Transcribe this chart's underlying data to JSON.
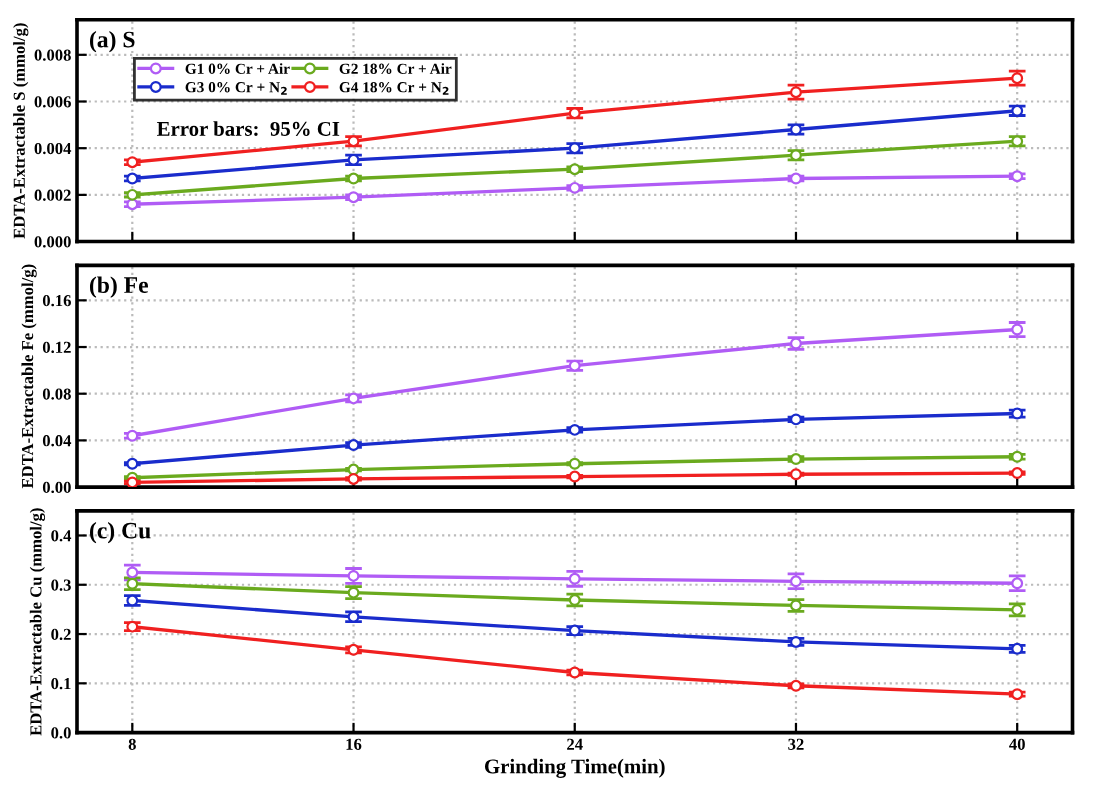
{
  "chart_data": [
    {
      "type": "line",
      "title": "(a) S",
      "ylabel": "EDTA-Extractable S (mmol/g)",
      "x": [
        8,
        16,
        24,
        32,
        40
      ],
      "xlim": [
        6,
        42
      ],
      "xticks": [
        8,
        16,
        24,
        32,
        40
      ],
      "ylim": [
        0,
        0.0095
      ],
      "yticks": [
        {
          "value": 0,
          "label": "0.000"
        },
        {
          "value": 0.002,
          "label": "0.002"
        },
        {
          "value": 0.004,
          "label": "0.004"
        },
        {
          "value": 0.006,
          "label": "0.006"
        },
        {
          "value": 0.008,
          "label": "0.008"
        }
      ],
      "grid": true,
      "legend": "top left",
      "marker": "circle",
      "tick_labels": "y",
      "annotations": [
        "Error bars:  95% CI"
      ],
      "series": [
        {
          "name": "G1 0% Cr + Air",
          "color": "#b05cf5",
          "values": [
            0.0016,
            0.0019,
            0.0023,
            0.0027,
            0.0028
          ],
          "errors": [
            0.0001,
            0.0001,
            0.0001,
            0.0001,
            0.0001
          ]
        },
        {
          "name": "G2 18% Cr + Air",
          "color": "#6aaa1e",
          "values": [
            0.002,
            0.0027,
            0.0031,
            0.0037,
            0.0043
          ],
          "errors": [
            0.0001,
            0.0001,
            0.0001,
            0.0002,
            0.0002
          ]
        },
        {
          "name": "G3 0% Cr + N$_{2}$",
          "color": "#1a2ccc",
          "values": [
            0.0027,
            0.0035,
            0.004,
            0.0048,
            0.0056
          ],
          "errors": [
            0.0001,
            0.0002,
            0.0002,
            0.0002,
            0.0002
          ]
        },
        {
          "name": "G4 18% Cr + N$_{2}$",
          "color": "#f02020",
          "values": [
            0.0034,
            0.0043,
            0.0055,
            0.0064,
            0.007
          ],
          "errors": [
            0.0001,
            0.0002,
            0.0002,
            0.0003,
            0.0003
          ]
        }
      ]
    },
    {
      "type": "line",
      "title": "(b) Fe",
      "ylabel": "EDTA-Extractable Fe (mmol/g)",
      "x": [
        8,
        16,
        24,
        32,
        40
      ],
      "xlim": [
        6,
        42
      ],
      "xticks": [
        8,
        16,
        24,
        32,
        40
      ],
      "ylim": [
        0,
        0.19
      ],
      "yticks": [
        {
          "value": 0,
          "label": "0.00"
        },
        {
          "value": 0.04,
          "label": "0.04"
        },
        {
          "value": 0.08,
          "label": "0.08"
        },
        {
          "value": 0.12,
          "label": "0.12"
        },
        {
          "value": 0.16,
          "label": "0.16"
        }
      ],
      "grid": true,
      "marker": "circle",
      "tick_labels": "y",
      "series": [
        {
          "color": "#b05cf5",
          "values": [
            0.044,
            0.076,
            0.104,
            0.123,
            0.135
          ],
          "errors": [
            0.002,
            0.003,
            0.004,
            0.005,
            0.006
          ]
        },
        {
          "color": "#6aaa1e",
          "values": [
            0.008,
            0.015,
            0.02,
            0.024,
            0.026
          ],
          "errors": [
            0.001,
            0.001,
            0.001,
            0.002,
            0.002
          ]
        },
        {
          "color": "#1a2ccc",
          "values": [
            0.02,
            0.036,
            0.049,
            0.058,
            0.063
          ],
          "errors": [
            0.001,
            0.002,
            0.002,
            0.002,
            0.003
          ]
        },
        {
          "color": "#f02020",
          "values": [
            0.004,
            0.007,
            0.009,
            0.011,
            0.012
          ],
          "errors": [
            0.001,
            0.001,
            0.001,
            0.001,
            0.001
          ]
        }
      ]
    },
    {
      "type": "line",
      "title": "(c) Cu",
      "ylabel": "EDTA-Extractable Cu (mmol/g)",
      "xlabel": "Grinding Time(min)",
      "x": [
        8,
        16,
        24,
        32,
        40
      ],
      "xlim": [
        6,
        42
      ],
      "xticks": [
        8,
        16,
        24,
        32,
        40
      ],
      "ylim": [
        0,
        0.45
      ],
      "yticks": [
        {
          "value": 0,
          "label": "0.0"
        },
        {
          "value": 0.1,
          "label": "0.1"
        },
        {
          "value": 0.2,
          "label": "0.2"
        },
        {
          "value": 0.3,
          "label": "0.3"
        },
        {
          "value": 0.4,
          "label": "0.4"
        }
      ],
      "grid": true,
      "marker": "circle",
      "series": [
        {
          "color": "#b05cf5",
          "values": [
            0.325,
            0.318,
            0.312,
            0.307,
            0.303
          ],
          "errors": [
            0.015,
            0.015,
            0.015,
            0.015,
            0.015
          ]
        },
        {
          "color": "#6aaa1e",
          "values": [
            0.302,
            0.284,
            0.269,
            0.258,
            0.249
          ],
          "errors": [
            0.012,
            0.012,
            0.012,
            0.012,
            0.012
          ]
        },
        {
          "color": "#1a2ccc",
          "values": [
            0.268,
            0.235,
            0.207,
            0.184,
            0.17
          ],
          "errors": [
            0.01,
            0.01,
            0.008,
            0.007,
            0.007
          ]
        },
        {
          "color": "#f02020",
          "values": [
            0.215,
            0.168,
            0.122,
            0.095,
            0.078
          ],
          "errors": [
            0.008,
            0.006,
            0.005,
            0.004,
            0.004
          ]
        }
      ]
    }
  ]
}
